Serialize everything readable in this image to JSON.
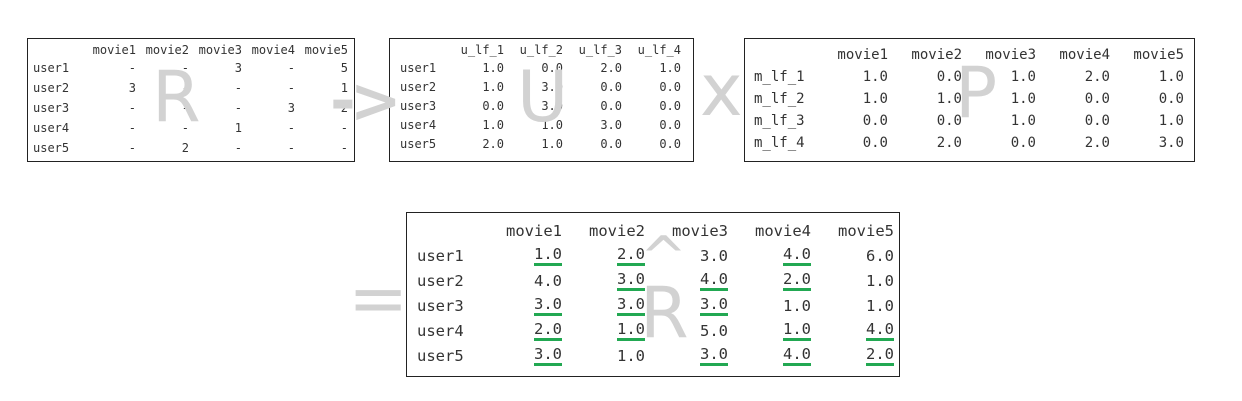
{
  "matrix_r": {
    "columns": [
      "",
      "movie1",
      "movie2",
      "movie3",
      "movie4",
      "movie5"
    ],
    "rows": [
      {
        "label": "user1",
        "cells": [
          "-",
          "-",
          "3",
          "-",
          "5"
        ]
      },
      {
        "label": "user2",
        "cells": [
          "3",
          "-",
          "-",
          "-",
          "1"
        ]
      },
      {
        "label": "user3",
        "cells": [
          "-",
          "-",
          "-",
          "3",
          "2"
        ]
      },
      {
        "label": "user4",
        "cells": [
          "-",
          "-",
          "1",
          "-",
          "-"
        ]
      },
      {
        "label": "user5",
        "cells": [
          "-",
          "2",
          "-",
          "-",
          "-"
        ]
      }
    ]
  },
  "matrix_u": {
    "columns": [
      "",
      "u_lf_1",
      "u_lf_2",
      "u_lf_3",
      "u_lf_4"
    ],
    "rows": [
      {
        "label": "user1",
        "cells": [
          "1.0",
          "0.0",
          "2.0",
          "1.0"
        ]
      },
      {
        "label": "user2",
        "cells": [
          "1.0",
          "3.0",
          "0.0",
          "0.0"
        ]
      },
      {
        "label": "user3",
        "cells": [
          "0.0",
          "3.0",
          "0.0",
          "0.0"
        ]
      },
      {
        "label": "user4",
        "cells": [
          "1.0",
          "1.0",
          "3.0",
          "0.0"
        ]
      },
      {
        "label": "user5",
        "cells": [
          "2.0",
          "1.0",
          "0.0",
          "0.0"
        ]
      }
    ]
  },
  "matrix_p": {
    "columns": [
      "",
      "movie1",
      "movie2",
      "movie3",
      "movie4",
      "movie5"
    ],
    "rows": [
      {
        "label": "m_lf_1",
        "cells": [
          "1.0",
          "0.0",
          "1.0",
          "2.0",
          "1.0"
        ]
      },
      {
        "label": "m_lf_2",
        "cells": [
          "1.0",
          "1.0",
          "1.0",
          "0.0",
          "0.0"
        ]
      },
      {
        "label": "m_lf_3",
        "cells": [
          "0.0",
          "0.0",
          "1.0",
          "0.0",
          "1.0"
        ]
      },
      {
        "label": "m_lf_4",
        "cells": [
          "0.0",
          "2.0",
          "0.0",
          "2.0",
          "3.0"
        ]
      }
    ]
  },
  "matrix_r_hat": {
    "columns": [
      "",
      "movie1",
      "movie2",
      "movie3",
      "movie4",
      "movie5"
    ],
    "rows": [
      {
        "label": "user1",
        "cells": [
          {
            "v": "1.0",
            "u": true
          },
          {
            "v": "2.0",
            "u": true
          },
          {
            "v": "3.0",
            "u": false
          },
          {
            "v": "4.0",
            "u": true
          },
          {
            "v": "6.0",
            "u": false
          }
        ]
      },
      {
        "label": "user2",
        "cells": [
          {
            "v": "4.0",
            "u": false
          },
          {
            "v": "3.0",
            "u": true
          },
          {
            "v": "4.0",
            "u": true
          },
          {
            "v": "2.0",
            "u": true
          },
          {
            "v": "1.0",
            "u": false
          }
        ]
      },
      {
        "label": "user3",
        "cells": [
          {
            "v": "3.0",
            "u": true
          },
          {
            "v": "3.0",
            "u": true
          },
          {
            "v": "3.0",
            "u": true
          },
          {
            "v": "1.0",
            "u": false
          },
          {
            "v": "1.0",
            "u": false
          }
        ]
      },
      {
        "label": "user4",
        "cells": [
          {
            "v": "2.0",
            "u": true
          },
          {
            "v": "1.0",
            "u": true
          },
          {
            "v": "5.0",
            "u": false
          },
          {
            "v": "1.0",
            "u": true
          },
          {
            "v": "4.0",
            "u": true
          }
        ]
      },
      {
        "label": "user5",
        "cells": [
          {
            "v": "3.0",
            "u": true
          },
          {
            "v": "1.0",
            "u": false
          },
          {
            "v": "3.0",
            "u": true
          },
          {
            "v": "4.0",
            "u": true
          },
          {
            "v": "2.0",
            "u": true
          }
        ]
      }
    ]
  },
  "symbols": {
    "r": "R",
    "arrow": "->",
    "u": "U",
    "times": "x",
    "p": "P",
    "equals": "=",
    "hat": "^",
    "r_hat": "R"
  },
  "colors": {
    "underline": "#22a852",
    "watermark": "#d2d2d2",
    "border": "#222222"
  }
}
